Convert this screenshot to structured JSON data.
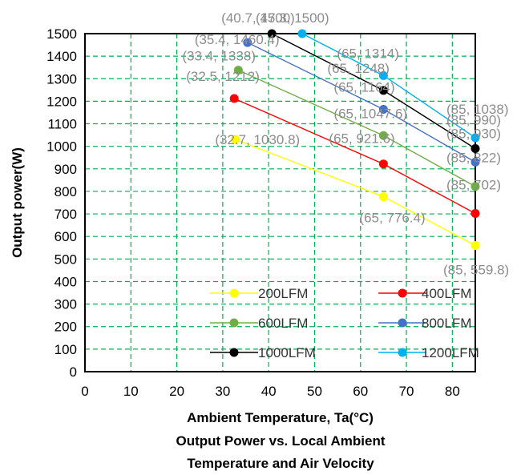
{
  "chart_data": {
    "type": "line",
    "title": "Output Power vs. Local Ambient Temperature and Air Velocity",
    "title_lines": [
      "Output Power vs. Local Ambient",
      "Temperature and Air Velocity"
    ],
    "xlabel": "Ambient Temperature, Ta(°C)",
    "ylabel": "Output power(W)",
    "xlim": [
      0,
      85
    ],
    "ylim": [
      0,
      1500
    ],
    "xticks": [
      0,
      10,
      20,
      30,
      40,
      50,
      60,
      70,
      80
    ],
    "yticks": [
      0,
      100,
      200,
      300,
      400,
      500,
      600,
      700,
      800,
      900,
      1000,
      1100,
      1200,
      1300,
      1400,
      1500
    ],
    "grid": "dashed green",
    "legend_position": "bottom-center",
    "series": [
      {
        "name": "200LFM",
        "color": "#ffff00",
        "points": [
          {
            "x": 32.7,
            "y": 1030.8,
            "label": "(32.7, 1030.8)"
          },
          {
            "x": 65,
            "y": 776.4,
            "label": "(65, 776.4)"
          },
          {
            "x": 85,
            "y": 559.8,
            "label": "(85, 559.8)"
          }
        ]
      },
      {
        "name": "400LFM",
        "color": "#ff0000",
        "points": [
          {
            "x": 32.5,
            "y": 1212,
            "label": "(32.5, 1212)"
          },
          {
            "x": 65,
            "y": 921.6,
            "label": "(65, 921.6)"
          },
          {
            "x": 85,
            "y": 702,
            "label": "(85, 702)"
          }
        ]
      },
      {
        "name": "600LFM",
        "color": "#70ad47",
        "points": [
          {
            "x": 33.4,
            "y": 1338,
            "label": "(33.4, 1338)"
          },
          {
            "x": 65,
            "y": 1047.6,
            "label": "(65, 1047.6)"
          },
          {
            "x": 85,
            "y": 822,
            "label": "(85, 822)"
          }
        ]
      },
      {
        "name": "800LFM",
        "color": "#4472c4",
        "points": [
          {
            "x": 35.4,
            "y": 1460.4,
            "label": "(35.4, 1460.4)"
          },
          {
            "x": 65,
            "y": 1164,
            "label": "(65, 1164)"
          },
          {
            "x": 85,
            "y": 930,
            "label": "(85, 930)"
          }
        ]
      },
      {
        "name": "1000LFM",
        "color": "#000000",
        "points": [
          {
            "x": 40.7,
            "y": 1500,
            "label": "(40.7, 1500)"
          },
          {
            "x": 65,
            "y": 1248,
            "label": "(65, 1248)"
          },
          {
            "x": 85,
            "y": 990,
            "label": "(85, 990)"
          }
        ]
      },
      {
        "name": "1200LFM",
        "color": "#00b0f0",
        "points": [
          {
            "x": 47.3,
            "y": 1500,
            "label": "(47.3, 1500)"
          },
          {
            "x": 65,
            "y": 1314,
            "label": "(65, 1314)"
          },
          {
            "x": 85,
            "y": 1038,
            "label": "(85, 1038)"
          }
        ]
      }
    ]
  }
}
